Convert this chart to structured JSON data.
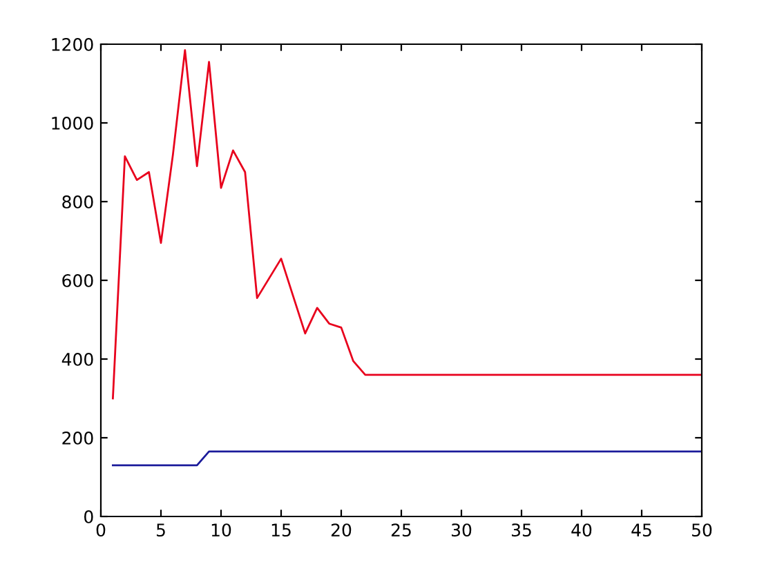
{
  "chart_data": {
    "type": "line",
    "x": [
      1,
      2,
      3,
      4,
      5,
      6,
      7,
      8,
      9,
      10,
      11,
      12,
      13,
      14,
      15,
      16,
      17,
      18,
      19,
      20,
      21,
      22,
      23,
      24,
      25,
      26,
      27,
      28,
      29,
      30,
      31,
      32,
      33,
      34,
      35,
      36,
      37,
      38,
      39,
      40,
      41,
      42,
      43,
      44,
      45,
      46,
      47,
      48,
      49,
      50
    ],
    "series": [
      {
        "color": "#e8001c",
        "values": [
          300,
          915,
          855,
          875,
          695,
          920,
          1185,
          890,
          1155,
          835,
          930,
          875,
          555,
          605,
          655,
          560,
          465,
          530,
          490,
          480,
          395,
          360,
          360,
          360,
          360,
          360,
          360,
          360,
          360,
          360,
          360,
          360,
          360,
          360,
          360,
          360,
          360,
          360,
          360,
          360,
          360,
          360,
          360,
          360,
          360,
          360,
          360,
          360,
          360,
          360
        ]
      },
      {
        "color": "#1a1a9a",
        "values": [
          130,
          130,
          130,
          130,
          130,
          130,
          130,
          130,
          165,
          165,
          165,
          165,
          165,
          165,
          165,
          165,
          165,
          165,
          165,
          165,
          165,
          165,
          165,
          165,
          165,
          165,
          165,
          165,
          165,
          165,
          165,
          165,
          165,
          165,
          165,
          165,
          165,
          165,
          165,
          165,
          165,
          165,
          165,
          165,
          165,
          165,
          165,
          165,
          165,
          165
        ]
      }
    ],
    "xlim": [
      0,
      50
    ],
    "xticks": [
      0,
      5,
      10,
      15,
      20,
      25,
      30,
      35,
      40,
      45,
      50
    ],
    "ylim": [
      0,
      1200
    ],
    "yticks": [
      0,
      200,
      400,
      600,
      800,
      1000,
      1200
    ],
    "grid": false
  }
}
